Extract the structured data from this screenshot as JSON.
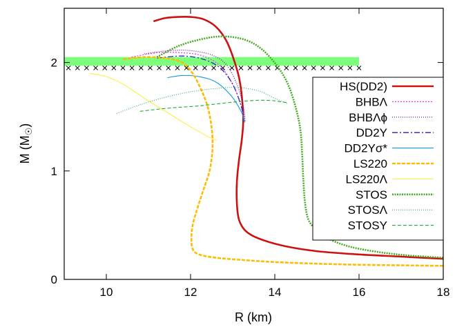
{
  "chart_data": {
    "type": "line",
    "xlabel": "R (km)",
    "ylabel_main": "M (M",
    "ylabel_symbol": "☉",
    "ylabel_close": ")",
    "xlim": [
      9,
      18
    ],
    "ylim": [
      0,
      2.5
    ],
    "xticks": [
      10,
      12,
      14,
      16,
      18
    ],
    "yticks": [
      0,
      1,
      2
    ],
    "grid": false,
    "legend_position": "right",
    "constraint_band": {
      "x": [
        9,
        16
      ],
      "y": [
        1.97,
        2.05
      ],
      "color": "#7dff7d"
    },
    "constraint_marks": {
      "x_start": 9.1,
      "x_end": 16.0,
      "y": 1.95,
      "count": 33
    },
    "series": [
      {
        "name": "HS(DD2)",
        "color": "#cc1111",
        "dash": "none",
        "width": 2.6,
        "x": [
          11.12,
          11.4,
          11.7,
          12.0,
          12.3,
          12.6,
          12.85,
          13.05,
          13.18,
          13.25,
          13.22,
          13.15,
          13.1,
          13.1,
          13.15,
          13.3,
          13.6,
          14.2,
          15.0,
          16.0,
          17.0,
          18.0
        ],
        "y": [
          2.38,
          2.41,
          2.42,
          2.42,
          2.4,
          2.33,
          2.2,
          2.0,
          1.8,
          1.5,
          1.3,
          1.1,
          0.9,
          0.7,
          0.55,
          0.45,
          0.38,
          0.31,
          0.26,
          0.23,
          0.21,
          0.19
        ]
      },
      {
        "name": "BHBΛ",
        "color": "#ee33ee",
        "dash": "2,2",
        "width": 1.2,
        "x": [
          10.6,
          11.2,
          11.8,
          12.3,
          12.7,
          13.0,
          13.2,
          13.28
        ],
        "y": [
          2.05,
          2.09,
          2.09,
          2.06,
          1.97,
          1.8,
          1.6,
          1.45
        ]
      },
      {
        "name": "BHBΛϕ",
        "color": "#660099",
        "dash": "1,2",
        "width": 1.2,
        "x": [
          10.9,
          11.5,
          12.0,
          12.5,
          12.85,
          13.1,
          13.25,
          13.3
        ],
        "y": [
          2.08,
          2.11,
          2.11,
          2.07,
          1.98,
          1.8,
          1.6,
          1.45
        ]
      },
      {
        "name": "DD2Y",
        "color": "#2222cc",
        "dash": "8,3,2,3",
        "width": 1.3,
        "x": [
          11.2,
          11.8,
          12.3,
          12.7,
          13.0,
          13.2,
          13.28
        ],
        "y": [
          2.04,
          2.06,
          2.03,
          1.95,
          1.8,
          1.6,
          1.45
        ]
      },
      {
        "name": "DD2Yσ*",
        "color": "#1199dd",
        "dash": "none",
        "width": 1.1,
        "x": [
          11.45,
          11.8,
          12.2,
          12.6,
          12.95,
          13.2,
          13.28
        ],
        "y": [
          1.86,
          1.88,
          1.87,
          1.82,
          1.7,
          1.55,
          1.45
        ]
      },
      {
        "name": "LS220",
        "color": "#ffbb00",
        "dash": "5,2",
        "width": 2.6,
        "x": [
          10.4,
          10.9,
          11.4,
          11.8,
          12.05,
          12.25,
          12.4,
          12.5,
          12.52,
          12.45,
          12.3,
          12.15,
          12.05,
          12.02,
          12.05,
          12.2,
          12.6,
          13.2,
          14.0,
          15.0,
          16.0,
          17.0,
          18.0
        ],
        "y": [
          2.03,
          2.05,
          2.04,
          2.0,
          1.9,
          1.75,
          1.6,
          1.4,
          1.2,
          1.0,
          0.82,
          0.64,
          0.5,
          0.38,
          0.28,
          0.23,
          0.2,
          0.18,
          0.16,
          0.145,
          0.135,
          0.13,
          0.125
        ]
      },
      {
        "name": "LS220Λ",
        "color": "#ffee44",
        "dash": "none",
        "width": 1.1,
        "x": [
          9.6,
          10.0,
          10.4,
          10.9,
          11.4,
          11.9,
          12.35,
          12.62
        ],
        "y": [
          1.9,
          1.87,
          1.8,
          1.67,
          1.55,
          1.43,
          1.33,
          1.28
        ]
      },
      {
        "name": "STOS",
        "color": "#44aa22",
        "dash": "2,1.5",
        "width": 2.6,
        "x": [
          11.2,
          11.7,
          12.2,
          12.7,
          13.2,
          13.6,
          13.95,
          14.25,
          14.45,
          14.6,
          14.65,
          14.68,
          14.72,
          14.8,
          15.0,
          15.3,
          15.8,
          16.5,
          17.2,
          18.0
        ],
        "y": [
          2.05,
          2.15,
          2.21,
          2.24,
          2.22,
          2.15,
          2.02,
          1.85,
          1.65,
          1.4,
          1.15,
          0.9,
          0.7,
          0.55,
          0.45,
          0.37,
          0.3,
          0.25,
          0.22,
          0.2
        ]
      },
      {
        "name": "STOSΛ",
        "color": "#33aa55",
        "dash": "1,2",
        "width": 1.1,
        "x": [
          10.25,
          10.8,
          11.4,
          12.0,
          12.6,
          13.1,
          13.6,
          14.0,
          14.3
        ],
        "y": [
          1.53,
          1.61,
          1.68,
          1.73,
          1.76,
          1.77,
          1.74,
          1.67,
          1.62
        ]
      },
      {
        "name": "STOSY",
        "color": "#22aa33",
        "dash": "5,3",
        "width": 1.1,
        "x": [
          10.8,
          11.5,
          12.2,
          12.9,
          13.5,
          13.9,
          14.1,
          14.3
        ],
        "y": [
          1.55,
          1.58,
          1.6,
          1.63,
          1.65,
          1.65,
          1.64,
          1.63
        ]
      }
    ]
  }
}
